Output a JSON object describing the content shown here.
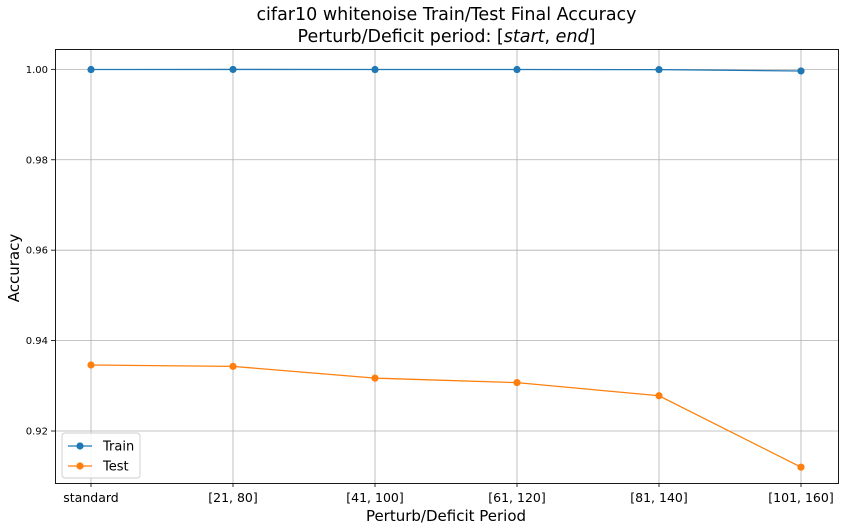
{
  "chart_data": {
    "type": "line",
    "title": "cifar10 whitenoise Train/Test Final Accuracy",
    "subtitle_prefix": "Perturb/Deficit period: [",
    "subtitle_start": "start",
    "subtitle_sep": ", ",
    "subtitle_end": "end",
    "subtitle_suffix": "]",
    "xlabel": "Perturb/Deficit Period",
    "ylabel": "Accuracy",
    "categories": [
      "standard",
      "[21, 80]",
      "[41, 100]",
      "[61, 120]",
      "[81, 140]",
      "[101, 160]"
    ],
    "yticks": [
      0.92,
      0.94,
      0.96,
      0.98,
      1.0
    ],
    "ytick_labels": [
      "0.92",
      "0.94",
      "0.96",
      "0.98",
      "1.00"
    ],
    "ylim": [
      0.9085,
      1.0045
    ],
    "grid": true,
    "legend_position": "bottom-left",
    "series": [
      {
        "name": "Train",
        "color": "#1f77b4",
        "values": [
          0.99996,
          0.99998,
          0.99996,
          0.99996,
          0.99994,
          0.99964
        ]
      },
      {
        "name": "Test",
        "color": "#ff7f0e",
        "values": [
          0.9346,
          0.9343,
          0.9317,
          0.9307,
          0.9278,
          0.912
        ]
      }
    ]
  }
}
